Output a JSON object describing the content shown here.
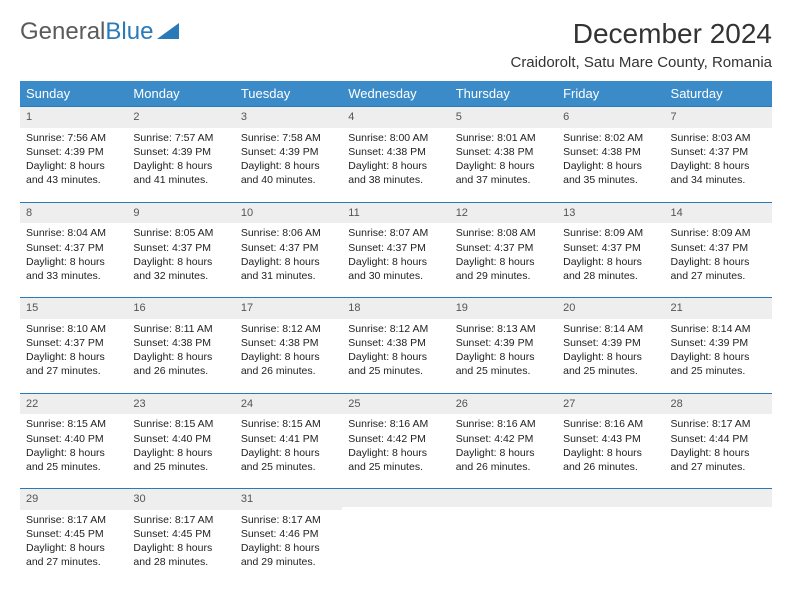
{
  "logo": {
    "text1": "General",
    "text2": "Blue"
  },
  "title": "December 2024",
  "location": "Craidorolt, Satu Mare County, Romania",
  "colors": {
    "header_bg": "#3b8bc8",
    "border": "#2a7ab8",
    "daynum_bg": "#eeeeee",
    "logo_gray": "#5a5a5a",
    "logo_blue": "#2a7ab8"
  },
  "weekdays": [
    "Sunday",
    "Monday",
    "Tuesday",
    "Wednesday",
    "Thursday",
    "Friday",
    "Saturday"
  ],
  "days": [
    {
      "n": 1,
      "sr": "7:56 AM",
      "ss": "4:39 PM",
      "dl": "8 hours and 43 minutes."
    },
    {
      "n": 2,
      "sr": "7:57 AM",
      "ss": "4:39 PM",
      "dl": "8 hours and 41 minutes."
    },
    {
      "n": 3,
      "sr": "7:58 AM",
      "ss": "4:39 PM",
      "dl": "8 hours and 40 minutes."
    },
    {
      "n": 4,
      "sr": "8:00 AM",
      "ss": "4:38 PM",
      "dl": "8 hours and 38 minutes."
    },
    {
      "n": 5,
      "sr": "8:01 AM",
      "ss": "4:38 PM",
      "dl": "8 hours and 37 minutes."
    },
    {
      "n": 6,
      "sr": "8:02 AM",
      "ss": "4:38 PM",
      "dl": "8 hours and 35 minutes."
    },
    {
      "n": 7,
      "sr": "8:03 AM",
      "ss": "4:37 PM",
      "dl": "8 hours and 34 minutes."
    },
    {
      "n": 8,
      "sr": "8:04 AM",
      "ss": "4:37 PM",
      "dl": "8 hours and 33 minutes."
    },
    {
      "n": 9,
      "sr": "8:05 AM",
      "ss": "4:37 PM",
      "dl": "8 hours and 32 minutes."
    },
    {
      "n": 10,
      "sr": "8:06 AM",
      "ss": "4:37 PM",
      "dl": "8 hours and 31 minutes."
    },
    {
      "n": 11,
      "sr": "8:07 AM",
      "ss": "4:37 PM",
      "dl": "8 hours and 30 minutes."
    },
    {
      "n": 12,
      "sr": "8:08 AM",
      "ss": "4:37 PM",
      "dl": "8 hours and 29 minutes."
    },
    {
      "n": 13,
      "sr": "8:09 AM",
      "ss": "4:37 PM",
      "dl": "8 hours and 28 minutes."
    },
    {
      "n": 14,
      "sr": "8:09 AM",
      "ss": "4:37 PM",
      "dl": "8 hours and 27 minutes."
    },
    {
      "n": 15,
      "sr": "8:10 AM",
      "ss": "4:37 PM",
      "dl": "8 hours and 27 minutes."
    },
    {
      "n": 16,
      "sr": "8:11 AM",
      "ss": "4:38 PM",
      "dl": "8 hours and 26 minutes."
    },
    {
      "n": 17,
      "sr": "8:12 AM",
      "ss": "4:38 PM",
      "dl": "8 hours and 26 minutes."
    },
    {
      "n": 18,
      "sr": "8:12 AM",
      "ss": "4:38 PM",
      "dl": "8 hours and 25 minutes."
    },
    {
      "n": 19,
      "sr": "8:13 AM",
      "ss": "4:39 PM",
      "dl": "8 hours and 25 minutes."
    },
    {
      "n": 20,
      "sr": "8:14 AM",
      "ss": "4:39 PM",
      "dl": "8 hours and 25 minutes."
    },
    {
      "n": 21,
      "sr": "8:14 AM",
      "ss": "4:39 PM",
      "dl": "8 hours and 25 minutes."
    },
    {
      "n": 22,
      "sr": "8:15 AM",
      "ss": "4:40 PM",
      "dl": "8 hours and 25 minutes."
    },
    {
      "n": 23,
      "sr": "8:15 AM",
      "ss": "4:40 PM",
      "dl": "8 hours and 25 minutes."
    },
    {
      "n": 24,
      "sr": "8:15 AM",
      "ss": "4:41 PM",
      "dl": "8 hours and 25 minutes."
    },
    {
      "n": 25,
      "sr": "8:16 AM",
      "ss": "4:42 PM",
      "dl": "8 hours and 25 minutes."
    },
    {
      "n": 26,
      "sr": "8:16 AM",
      "ss": "4:42 PM",
      "dl": "8 hours and 26 minutes."
    },
    {
      "n": 27,
      "sr": "8:16 AM",
      "ss": "4:43 PM",
      "dl": "8 hours and 26 minutes."
    },
    {
      "n": 28,
      "sr": "8:17 AM",
      "ss": "4:44 PM",
      "dl": "8 hours and 27 minutes."
    },
    {
      "n": 29,
      "sr": "8:17 AM",
      "ss": "4:45 PM",
      "dl": "8 hours and 27 minutes."
    },
    {
      "n": 30,
      "sr": "8:17 AM",
      "ss": "4:45 PM",
      "dl": "8 hours and 28 minutes."
    },
    {
      "n": 31,
      "sr": "8:17 AM",
      "ss": "4:46 PM",
      "dl": "8 hours and 29 minutes."
    }
  ],
  "labels": {
    "sunrise": "Sunrise:",
    "sunset": "Sunset:",
    "daylight": "Daylight:"
  },
  "start_weekday": 0,
  "trailing_empty": 4
}
